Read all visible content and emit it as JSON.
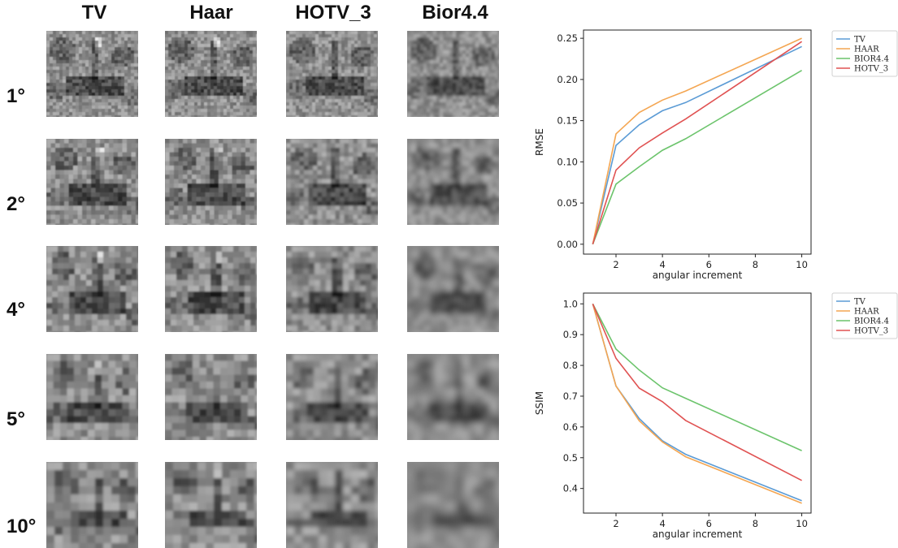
{
  "grid": {
    "columns": [
      "TV",
      "Haar",
      "HOTV_3",
      "Bior4.4"
    ],
    "rows": [
      "1°",
      "2°",
      "4°",
      "5°",
      "10°"
    ]
  },
  "chart_data": [
    {
      "type": "line",
      "title": "",
      "xlabel": "angular increment",
      "ylabel": "RMSE",
      "xlim": [
        0.6,
        10.4
      ],
      "ylim": [
        -0.012,
        0.26
      ],
      "xticks": [
        2,
        4,
        6,
        8,
        10
      ],
      "yticks": [
        0.0,
        0.05,
        0.1,
        0.15,
        0.2,
        0.25
      ],
      "legend_position": "outside-right",
      "x": [
        1,
        2,
        3,
        4,
        5,
        10
      ],
      "series": [
        {
          "name": "TV",
          "color": "#5b9bd5",
          "values": [
            0.0,
            0.12,
            0.145,
            0.162,
            0.172,
            0.24
          ]
        },
        {
          "name": "HAAR",
          "color": "#f4a652",
          "values": [
            0.0,
            0.134,
            0.16,
            0.175,
            0.186,
            0.25
          ]
        },
        {
          "name": "BIOR4.4",
          "color": "#6cc46c",
          "values": [
            0.0,
            0.073,
            0.094,
            0.114,
            0.128,
            0.211
          ]
        },
        {
          "name": "HOTV_3",
          "color": "#e05252",
          "values": [
            0.0,
            0.09,
            0.117,
            0.135,
            0.152,
            0.246
          ]
        }
      ]
    },
    {
      "type": "line",
      "title": "",
      "xlabel": "angular increment",
      "ylabel": "SSIM",
      "xlim": [
        0.6,
        10.4
      ],
      "ylim": [
        0.32,
        1.035
      ],
      "xticks": [
        2,
        4,
        6,
        8,
        10
      ],
      "yticks": [
        0.4,
        0.5,
        0.6,
        0.7,
        0.8,
        0.9,
        1.0
      ],
      "legend_position": "outside-right",
      "x": [
        1,
        2,
        3,
        4,
        5,
        10
      ],
      "series": [
        {
          "name": "TV",
          "color": "#5b9bd5",
          "values": [
            1.0,
            0.733,
            0.627,
            0.555,
            0.511,
            0.36
          ]
        },
        {
          "name": "HAAR",
          "color": "#f4a652",
          "values": [
            1.0,
            0.733,
            0.62,
            0.551,
            0.503,
            0.352
          ]
        },
        {
          "name": "BIOR4.4",
          "color": "#6cc46c",
          "values": [
            1.0,
            0.853,
            0.785,
            0.727,
            0.693,
            0.523
          ]
        },
        {
          "name": "HOTV_3",
          "color": "#e05252",
          "values": [
            1.0,
            0.823,
            0.726,
            0.682,
            0.621,
            0.426
          ]
        }
      ]
    }
  ]
}
